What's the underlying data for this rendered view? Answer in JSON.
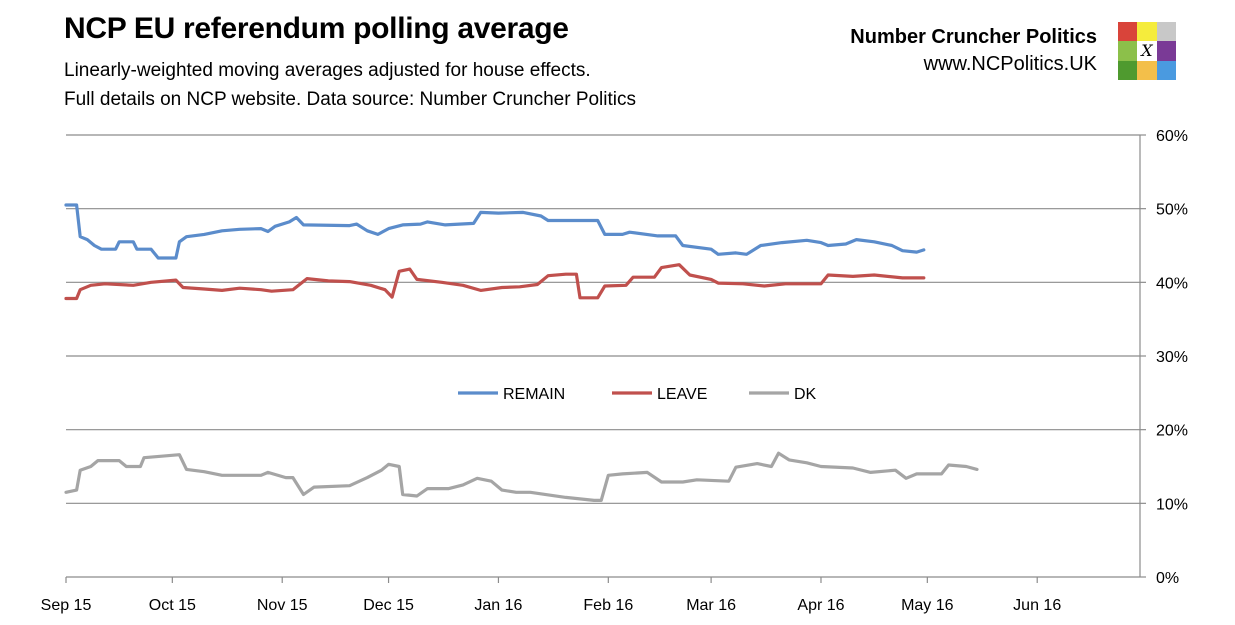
{
  "header": {
    "title": "NCP EU referendum polling average",
    "subtitle_line1": "Linearly-weighted moving averages adjusted for house effects.",
    "subtitle_line2": "Full details on NCP website. Data source: Number Cruncher Politics",
    "brand_name": "Number Cruncher Politics",
    "brand_url": "www.NCPolitics.UK"
  },
  "logo": {
    "colors": [
      "#d9443a",
      "#f5ec3c",
      "#c8c8c8",
      "#8cc04a",
      "#ffffff",
      "#7a3a96",
      "#4f9a2f",
      "#f3bf4a",
      "#4a9ae0"
    ],
    "mark": "X"
  },
  "chart_data": {
    "type": "line",
    "x_labels": [
      "Sep 15",
      "Oct 15",
      "Nov 15",
      "Dec 15",
      "Jan 16",
      "Feb 16",
      "Mar 16",
      "Apr 16",
      "May 16",
      "Jun 16"
    ],
    "x_range": [
      "2015-09-01",
      "2016-06-30"
    ],
    "y_ticks": [
      "0%",
      "10%",
      "20%",
      "30%",
      "40%",
      "50%",
      "60%"
    ],
    "ylim": [
      0,
      60
    ],
    "y_axis_side": "right",
    "grid": true,
    "legend_position": "center",
    "series": [
      {
        "name": "REMAIN",
        "color": "#5b8ccb",
        "points": [
          [
            "2015-09-01",
            50.5
          ],
          [
            "2015-09-04",
            50.5
          ],
          [
            "2015-09-05",
            46.2
          ],
          [
            "2015-09-07",
            45.8
          ],
          [
            "2015-09-09",
            45.0
          ],
          [
            "2015-09-11",
            44.5
          ],
          [
            "2015-09-15",
            44.5
          ],
          [
            "2015-09-16",
            45.5
          ],
          [
            "2015-09-20",
            45.5
          ],
          [
            "2015-09-21",
            44.5
          ],
          [
            "2015-09-25",
            44.5
          ],
          [
            "2015-09-27",
            43.3
          ],
          [
            "2015-10-02",
            43.3
          ],
          [
            "2015-10-03",
            45.5
          ],
          [
            "2015-10-05",
            46.2
          ],
          [
            "2015-10-10",
            46.5
          ],
          [
            "2015-10-15",
            47.0
          ],
          [
            "2015-10-20",
            47.2
          ],
          [
            "2015-10-26",
            47.3
          ],
          [
            "2015-10-28",
            46.9
          ],
          [
            "2015-10-30",
            47.6
          ],
          [
            "2015-11-03",
            48.2
          ],
          [
            "2015-11-05",
            48.8
          ],
          [
            "2015-11-07",
            47.8
          ],
          [
            "2015-11-20",
            47.7
          ],
          [
            "2015-11-22",
            47.9
          ],
          [
            "2015-11-25",
            47.0
          ],
          [
            "2015-11-28",
            46.5
          ],
          [
            "2015-12-01",
            47.3
          ],
          [
            "2015-12-05",
            47.8
          ],
          [
            "2015-12-10",
            47.9
          ],
          [
            "2015-12-12",
            48.2
          ],
          [
            "2015-12-17",
            47.8
          ],
          [
            "2015-12-25",
            48.0
          ],
          [
            "2015-12-27",
            49.5
          ],
          [
            "2016-01-01",
            49.4
          ],
          [
            "2016-01-08",
            49.5
          ],
          [
            "2016-01-13",
            49.0
          ],
          [
            "2016-01-15",
            48.4
          ],
          [
            "2016-01-29",
            48.4
          ],
          [
            "2016-01-31",
            46.5
          ],
          [
            "2016-02-05",
            46.5
          ],
          [
            "2016-02-07",
            46.8
          ],
          [
            "2016-02-15",
            46.3
          ],
          [
            "2016-02-20",
            46.3
          ],
          [
            "2016-02-22",
            45.0
          ],
          [
            "2016-03-01",
            44.5
          ],
          [
            "2016-03-03",
            43.8
          ],
          [
            "2016-03-08",
            44.0
          ],
          [
            "2016-03-11",
            43.8
          ],
          [
            "2016-03-15",
            45.0
          ],
          [
            "2016-03-21",
            45.4
          ],
          [
            "2016-03-28",
            45.7
          ],
          [
            "2016-04-01",
            45.4
          ],
          [
            "2016-04-03",
            45.0
          ],
          [
            "2016-04-08",
            45.2
          ],
          [
            "2016-04-11",
            45.8
          ],
          [
            "2016-04-16",
            45.5
          ],
          [
            "2016-04-21",
            45.0
          ],
          [
            "2016-04-24",
            44.3
          ],
          [
            "2016-04-28",
            44.1
          ],
          [
            "2016-04-30",
            44.4
          ]
        ]
      },
      {
        "name": "LEAVE",
        "color": "#c0504d",
        "points": [
          [
            "2015-09-01",
            37.8
          ],
          [
            "2015-09-04",
            37.8
          ],
          [
            "2015-09-05",
            39.0
          ],
          [
            "2015-09-08",
            39.6
          ],
          [
            "2015-09-12",
            39.8
          ],
          [
            "2015-09-20",
            39.6
          ],
          [
            "2015-09-25",
            40.0
          ],
          [
            "2015-10-02",
            40.3
          ],
          [
            "2015-10-04",
            39.3
          ],
          [
            "2015-10-10",
            39.1
          ],
          [
            "2015-10-15",
            38.9
          ],
          [
            "2015-10-20",
            39.2
          ],
          [
            "2015-10-26",
            39.0
          ],
          [
            "2015-10-29",
            38.8
          ],
          [
            "2015-11-04",
            39.0
          ],
          [
            "2015-11-08",
            40.5
          ],
          [
            "2015-11-14",
            40.2
          ],
          [
            "2015-11-20",
            40.1
          ],
          [
            "2015-11-26",
            39.6
          ],
          [
            "2015-11-30",
            39.0
          ],
          [
            "2015-12-02",
            38.0
          ],
          [
            "2015-12-04",
            41.5
          ],
          [
            "2015-12-07",
            41.8
          ],
          [
            "2015-12-09",
            40.4
          ],
          [
            "2015-12-16",
            40.0
          ],
          [
            "2015-12-22",
            39.6
          ],
          [
            "2015-12-27",
            38.9
          ],
          [
            "2016-01-02",
            39.3
          ],
          [
            "2016-01-07",
            39.4
          ],
          [
            "2016-01-12",
            39.7
          ],
          [
            "2016-01-15",
            40.9
          ],
          [
            "2016-01-20",
            41.1
          ],
          [
            "2016-01-23",
            41.1
          ],
          [
            "2016-01-24",
            37.9
          ],
          [
            "2016-01-29",
            37.9
          ],
          [
            "2016-01-31",
            39.5
          ],
          [
            "2016-02-06",
            39.6
          ],
          [
            "2016-02-08",
            40.7
          ],
          [
            "2016-02-14",
            40.7
          ],
          [
            "2016-02-16",
            42.0
          ],
          [
            "2016-02-21",
            42.4
          ],
          [
            "2016-02-24",
            41.0
          ],
          [
            "2016-03-01",
            40.4
          ],
          [
            "2016-03-03",
            39.9
          ],
          [
            "2016-03-10",
            39.8
          ],
          [
            "2016-03-16",
            39.5
          ],
          [
            "2016-03-22",
            39.8
          ],
          [
            "2016-04-01",
            39.8
          ],
          [
            "2016-04-03",
            41.0
          ],
          [
            "2016-04-10",
            40.8
          ],
          [
            "2016-04-16",
            41.0
          ],
          [
            "2016-04-24",
            40.6
          ],
          [
            "2016-04-30",
            40.6
          ]
        ]
      },
      {
        "name": "DK",
        "color": "#a5a5a5",
        "points": [
          [
            "2015-09-01",
            11.5
          ],
          [
            "2015-09-04",
            11.8
          ],
          [
            "2015-09-05",
            14.5
          ],
          [
            "2015-09-08",
            15.0
          ],
          [
            "2015-09-10",
            15.8
          ],
          [
            "2015-09-16",
            15.8
          ],
          [
            "2015-09-18",
            15.0
          ],
          [
            "2015-09-22",
            15.0
          ],
          [
            "2015-09-23",
            16.2
          ],
          [
            "2015-09-28",
            16.4
          ],
          [
            "2015-10-03",
            16.6
          ],
          [
            "2015-10-05",
            14.6
          ],
          [
            "2015-10-10",
            14.3
          ],
          [
            "2015-10-15",
            13.8
          ],
          [
            "2015-10-26",
            13.8
          ],
          [
            "2015-10-28",
            14.2
          ],
          [
            "2015-11-02",
            13.5
          ],
          [
            "2015-11-04",
            13.5
          ],
          [
            "2015-11-07",
            11.2
          ],
          [
            "2015-11-10",
            12.2
          ],
          [
            "2015-11-20",
            12.4
          ],
          [
            "2015-11-25",
            13.5
          ],
          [
            "2015-11-29",
            14.5
          ],
          [
            "2015-12-01",
            15.3
          ],
          [
            "2015-12-04",
            15.0
          ],
          [
            "2015-12-05",
            11.2
          ],
          [
            "2015-12-09",
            11.0
          ],
          [
            "2015-12-12",
            12.0
          ],
          [
            "2015-12-18",
            12.0
          ],
          [
            "2015-12-22",
            12.5
          ],
          [
            "2015-12-26",
            13.4
          ],
          [
            "2015-12-30",
            13.0
          ],
          [
            "2016-01-02",
            11.8
          ],
          [
            "2016-01-06",
            11.5
          ],
          [
            "2016-01-10",
            11.5
          ],
          [
            "2016-01-20",
            10.8
          ],
          [
            "2016-01-28",
            10.4
          ],
          [
            "2016-01-30",
            10.4
          ],
          [
            "2016-02-01",
            13.8
          ],
          [
            "2016-02-05",
            14.0
          ],
          [
            "2016-02-12",
            14.2
          ],
          [
            "2016-02-16",
            12.9
          ],
          [
            "2016-02-22",
            12.9
          ],
          [
            "2016-02-26",
            13.2
          ],
          [
            "2016-03-06",
            13.0
          ],
          [
            "2016-03-08",
            14.9
          ],
          [
            "2016-03-14",
            15.4
          ],
          [
            "2016-03-18",
            15.0
          ],
          [
            "2016-03-20",
            16.8
          ],
          [
            "2016-03-23",
            15.9
          ],
          [
            "2016-03-28",
            15.5
          ],
          [
            "2016-04-01",
            15.0
          ],
          [
            "2016-04-10",
            14.8
          ],
          [
            "2016-04-15",
            14.2
          ],
          [
            "2016-04-22",
            14.5
          ],
          [
            "2016-04-25",
            13.4
          ],
          [
            "2016-04-28",
            14.0
          ],
          [
            "2016-05-05",
            14.0
          ],
          [
            "2016-05-07",
            15.2
          ],
          [
            "2016-05-12",
            15.0
          ],
          [
            "2016-05-15",
            14.6
          ]
        ]
      }
    ]
  }
}
